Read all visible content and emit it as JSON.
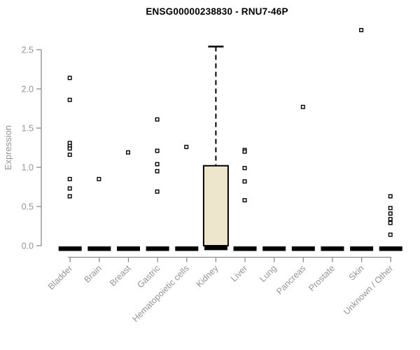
{
  "chart_data": {
    "type": "boxplot",
    "title": "ENSG00000238830 - RNU7-46P",
    "ylabel": "Expression",
    "xlabel": "",
    "ylim": [
      0,
      2.5
    ],
    "yticks": [
      0.0,
      0.5,
      1.0,
      1.5,
      2.0,
      2.5
    ],
    "grid": false,
    "legend": null,
    "categories": [
      "Bladder",
      "Brain",
      "Breast",
      "Gastric",
      "Hematopoietic cells",
      "Kidney",
      "Liver",
      "Lung",
      "Pancreas",
      "Prostate",
      "Skin",
      "Unknown / Other"
    ],
    "boxes": [
      {
        "category": "Bladder",
        "q1": 0,
        "median": 0,
        "q3": 0,
        "whisker_low": 0,
        "whisker_high": 0,
        "outliers": [
          2.14,
          1.86,
          1.31,
          1.27,
          1.24,
          1.16,
          0.85,
          0.73,
          0.63
        ]
      },
      {
        "category": "Brain",
        "q1": 0,
        "median": 0,
        "q3": 0,
        "whisker_low": 0,
        "whisker_high": 0,
        "outliers": [
          0.85
        ]
      },
      {
        "category": "Breast",
        "q1": 0,
        "median": 0,
        "q3": 0,
        "whisker_low": 0,
        "whisker_high": 0,
        "outliers": [
          1.19
        ]
      },
      {
        "category": "Gastric",
        "q1": 0,
        "median": 0,
        "q3": 0,
        "whisker_low": 0,
        "whisker_high": 0,
        "outliers": [
          1.61,
          1.21,
          1.04,
          0.95,
          0.69
        ]
      },
      {
        "category": "Hematopoietic cells",
        "q1": 0,
        "median": 0,
        "q3": 0,
        "whisker_low": 0,
        "whisker_high": 0,
        "outliers": [
          1.26
        ]
      },
      {
        "category": "Kidney",
        "q1": 0,
        "median": 0.01,
        "q3": 1.02,
        "whisker_low": 0,
        "whisker_high": 2.54,
        "outliers": []
      },
      {
        "category": "Liver",
        "q1": 0,
        "median": 0,
        "q3": 0,
        "whisker_low": 0,
        "whisker_high": 0,
        "outliers": [
          1.22,
          1.2,
          0.99,
          0.82,
          0.58
        ]
      },
      {
        "category": "Lung",
        "q1": 0,
        "median": 0,
        "q3": 0,
        "whisker_low": 0,
        "whisker_high": 0,
        "outliers": []
      },
      {
        "category": "Pancreas",
        "q1": 0,
        "median": 0,
        "q3": 0,
        "whisker_low": 0,
        "whisker_high": 0,
        "outliers": [
          1.77
        ]
      },
      {
        "category": "Prostate",
        "q1": 0,
        "median": 0,
        "q3": 0,
        "whisker_low": 0,
        "whisker_high": 0,
        "outliers": []
      },
      {
        "category": "Skin",
        "q1": 0,
        "median": 0,
        "q3": 0,
        "whisker_low": 0,
        "whisker_high": 0,
        "outliers": [
          2.75
        ]
      },
      {
        "category": "Unknown / Other",
        "q1": 0,
        "median": 0,
        "q3": 0,
        "whisker_low": 0,
        "whisker_high": 0,
        "outliers": [
          0.63,
          0.48,
          0.41,
          0.34,
          0.29,
          0.14
        ]
      }
    ]
  },
  "colors": {
    "box_fill": "#ede6cd",
    "box_border": "#000000",
    "median": "#000000",
    "outlier_stroke": "#000000",
    "outlier_fill": "#ffffff",
    "axis_line": "#8c8c8c",
    "tick_label": "#949494",
    "axis_label": "#949494",
    "title": "#000000",
    "background": "#ffffff"
  }
}
